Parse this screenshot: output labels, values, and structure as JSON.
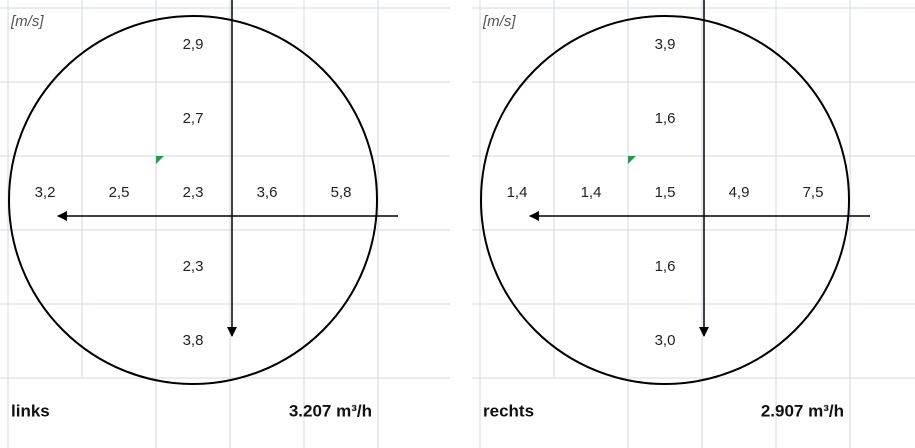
{
  "panels": [
    {
      "unit": "[m/s]",
      "upper": [
        "2,9",
        "2,7"
      ],
      "row": [
        "3,2",
        "2,5",
        "2,3",
        "3,6",
        "5,8"
      ],
      "lower": [
        "2,3",
        "3,8"
      ],
      "label": "links",
      "flow": "3.207 m³/h"
    },
    {
      "unit": "[m/s]",
      "upper": [
        "3,9",
        "1,6"
      ],
      "row": [
        "1,4",
        "1,4",
        "1,5",
        "4,9",
        "7,5"
      ],
      "lower": [
        "1,6",
        "3,0"
      ],
      "label": "rechts",
      "flow": "2.907 m³/h"
    }
  ]
}
